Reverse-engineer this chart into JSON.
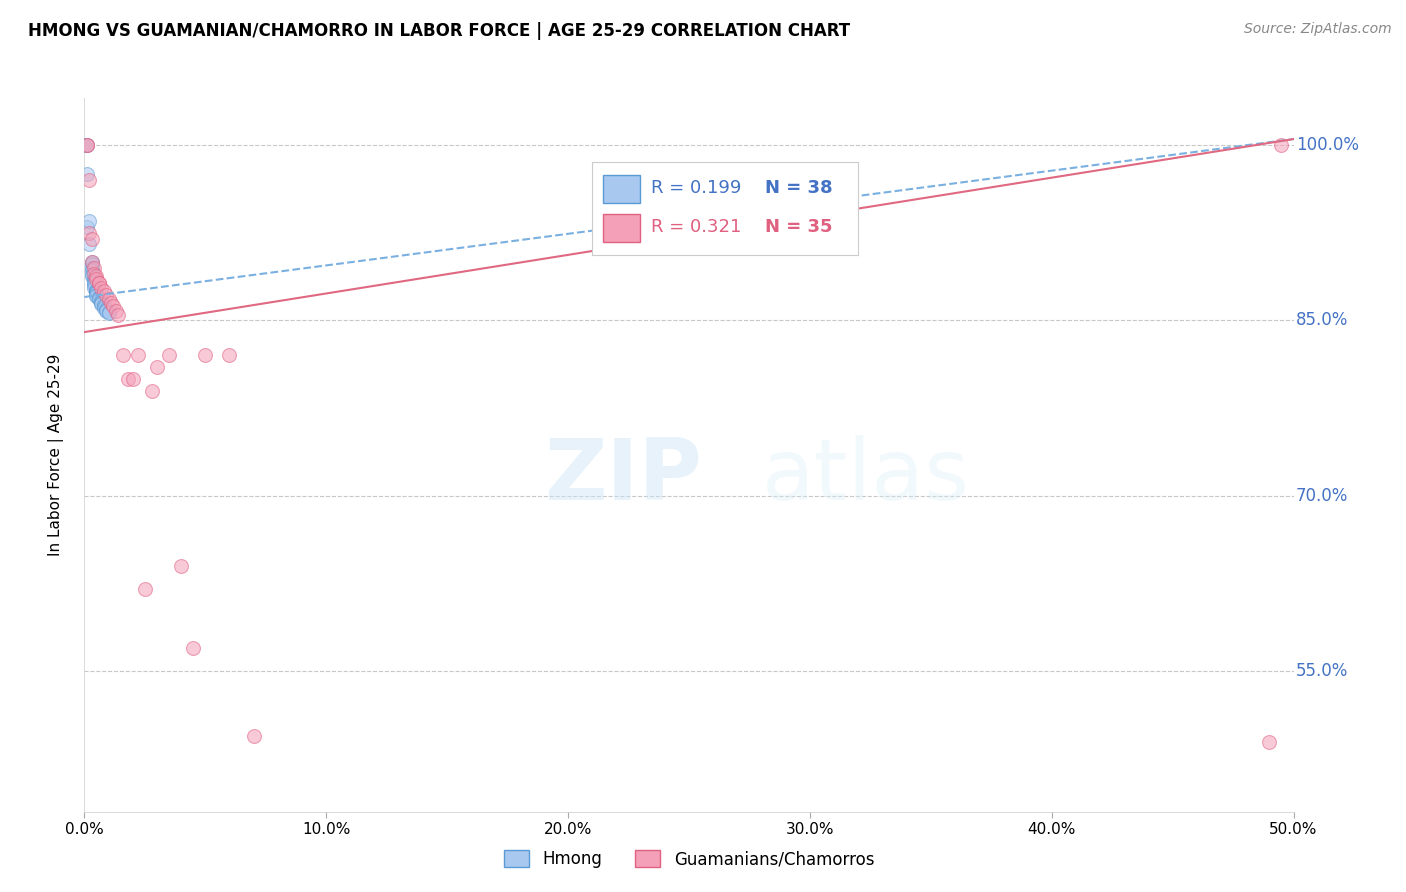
{
  "title": "HMONG VS GUAMANIAN/CHAMORRO IN LABOR FORCE | AGE 25-29 CORRELATION CHART",
  "source": "Source: ZipAtlas.com",
  "ylabel": "In Labor Force | Age 25-29",
  "x_min": 0.0,
  "x_max": 0.5,
  "y_min": 0.43,
  "y_max": 1.04,
  "x_ticks": [
    0.0,
    0.1,
    0.2,
    0.3,
    0.4,
    0.5
  ],
  "x_tick_labels": [
    "0.0%",
    "10.0%",
    "20.0%",
    "30.0%",
    "40.0%",
    "50.0%"
  ],
  "y_ticks": [
    0.55,
    0.7,
    0.85,
    1.0
  ],
  "y_tick_labels": [
    "55.0%",
    "70.0%",
    "85.0%",
    "100.0%"
  ],
  "hmong_color": "#a8c8f0",
  "hmong_edge_color": "#5b9bd5",
  "guam_color": "#f4a0b8",
  "guam_edge_color": "#e06080",
  "hmong_line_color": "#7ab0e0",
  "guam_line_color": "#e06880",
  "background_color": "#ffffff",
  "grid_color": "#c8c8c8",
  "right_label_color": "#4472c4",
  "legend_R_hmong": "R = 0.199",
  "legend_N_hmong": "N = 38",
  "legend_R_guam": "R = 0.321",
  "legend_N_guam": "N = 35",
  "hmong_x": [
    0.0,
    0.001,
    0.001,
    0.001,
    0.002,
    0.002,
    0.003,
    0.003,
    0.003,
    0.003,
    0.003,
    0.003,
    0.004,
    0.004,
    0.004,
    0.004,
    0.004,
    0.005,
    0.005,
    0.005,
    0.005,
    0.005,
    0.005,
    0.006,
    0.006,
    0.006,
    0.007,
    0.007,
    0.007,
    0.007,
    0.008,
    0.008,
    0.008,
    0.009,
    0.009,
    0.009,
    0.01,
    0.01
  ],
  "hmong_y": [
    1.0,
    1.0,
    0.975,
    0.93,
    0.935,
    0.915,
    0.9,
    0.898,
    0.895,
    0.893,
    0.89,
    0.888,
    0.886,
    0.884,
    0.882,
    0.88,
    0.878,
    0.876,
    0.875,
    0.874,
    0.873,
    0.872,
    0.871,
    0.87,
    0.869,
    0.868,
    0.867,
    0.866,
    0.865,
    0.864,
    0.863,
    0.862,
    0.861,
    0.86,
    0.859,
    0.858,
    0.857,
    0.856
  ],
  "guam_x": [
    0.001,
    0.001,
    0.002,
    0.002,
    0.003,
    0.003,
    0.004,
    0.004,
    0.005,
    0.005,
    0.006,
    0.006,
    0.007,
    0.008,
    0.009,
    0.01,
    0.011,
    0.012,
    0.013,
    0.014,
    0.016,
    0.018,
    0.02,
    0.022,
    0.025,
    0.028,
    0.03,
    0.035,
    0.04,
    0.045,
    0.05,
    0.06,
    0.07,
    0.49,
    0.495
  ],
  "guam_y": [
    1.0,
    1.0,
    0.97,
    0.925,
    0.92,
    0.9,
    0.895,
    0.89,
    0.888,
    0.885,
    0.882,
    0.882,
    0.878,
    0.875,
    0.872,
    0.868,
    0.865,
    0.862,
    0.858,
    0.855,
    0.82,
    0.8,
    0.8,
    0.82,
    0.62,
    0.79,
    0.81,
    0.82,
    0.64,
    0.57,
    0.82,
    0.82,
    0.495,
    0.49,
    1.0
  ],
  "marker_size": 100,
  "alpha": 0.55,
  "watermark_zip": "ZIP",
  "watermark_atlas": "atlas"
}
